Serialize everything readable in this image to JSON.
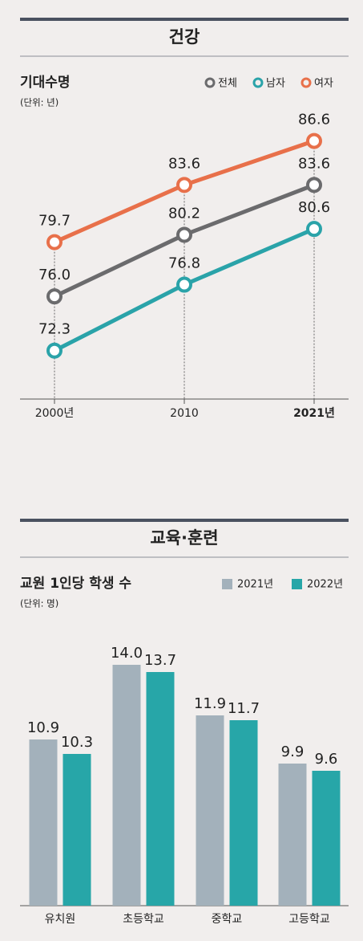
{
  "chart_data": [
    {
      "type": "line",
      "heading": "건강",
      "title": "기대수명",
      "subtitle": "(단위: 년)",
      "categories": [
        "2000년",
        "2010",
        "2021년"
      ],
      "ylim": [
        69,
        88
      ],
      "series": [
        {
          "name": "전체",
          "color": "#6b6b6d",
          "values": [
            76.0,
            80.2,
            83.6
          ],
          "value_labels": [
            "76.0",
            "80.2",
            "83.6"
          ]
        },
        {
          "name": "남자",
          "color": "#2aa3a9",
          "values": [
            72.3,
            76.8,
            80.6
          ],
          "value_labels": [
            "72.3",
            "76.8",
            "80.6"
          ]
        },
        {
          "name": "여자",
          "color": "#e8704a",
          "values": [
            79.7,
            83.6,
            86.6
          ],
          "value_labels": [
            "79.7",
            "83.6",
            "86.6"
          ]
        }
      ]
    },
    {
      "type": "bar",
      "heading": "교육·훈련",
      "title": "교원 1인당 학생 수",
      "subtitle": "(단위: 명)",
      "categories": [
        "유치원",
        "초등학교",
        "중학교",
        "고등학교"
      ],
      "ylim": [
        4,
        15
      ],
      "series": [
        {
          "name": "2021년",
          "color": "#a3b1bb",
          "values": [
            10.9,
            14.0,
            11.9,
            9.9
          ],
          "value_labels": [
            "10.9",
            "14.0",
            "11.9",
            "9.9"
          ]
        },
        {
          "name": "2022년",
          "color": "#27a6a8",
          "values": [
            10.3,
            13.7,
            11.7,
            9.6
          ],
          "value_labels": [
            "10.3",
            "13.7",
            "11.7",
            "9.6"
          ]
        }
      ]
    }
  ]
}
